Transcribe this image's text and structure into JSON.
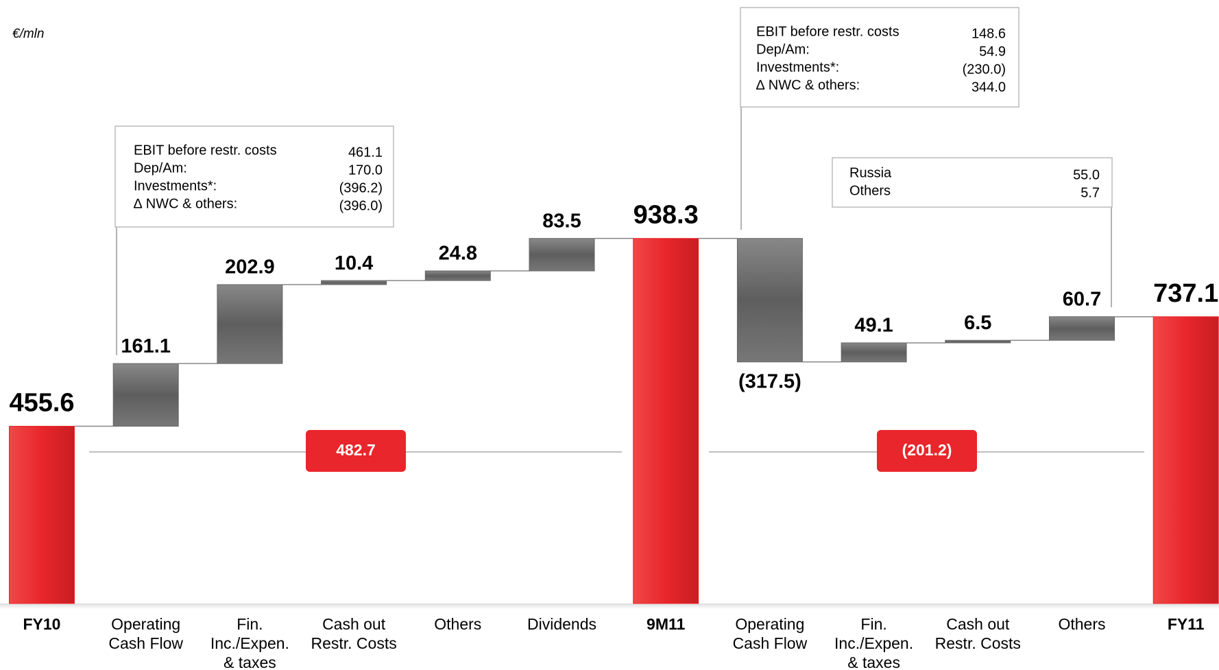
{
  "chart_data": {
    "type": "waterfall",
    "unit_label": "€/mln",
    "categories": [
      "FY10",
      "Operating\nCash Flow",
      "Fin.\nInc./Expen.\n& taxes",
      "Cash out\nRestr. Costs",
      "Others",
      "Dividends",
      "9M11",
      "Operating\nCash Flow",
      "Fin.\nInc./Expen.\n& taxes",
      "Cash out\nRestr. Costs",
      "Others",
      "FY11"
    ],
    "values": [
      455.6,
      161.1,
      202.9,
      10.4,
      24.8,
      83.5,
      938.3,
      -317.5,
      49.1,
      6.5,
      60.7,
      737.1
    ],
    "value_labels": [
      "455.6",
      "161.1",
      "202.9",
      "10.4",
      "24.8",
      "83.5",
      "938.3",
      "(317.5)",
      "49.1",
      "6.5",
      "60.7",
      "737.1"
    ],
    "totals": [
      true,
      false,
      false,
      false,
      false,
      false,
      true,
      false,
      false,
      false,
      false,
      true
    ],
    "total_color": "#e8262b",
    "change_color": "#666666",
    "ylim": [
      0,
      1500
    ],
    "period_sums": [
      "482.7",
      "(201.2)"
    ],
    "notes": [
      {
        "rows": [
          [
            "EBIT before restr. costs",
            "461.1"
          ],
          [
            "Dep/Am:",
            "170.0"
          ],
          [
            "Investments*:",
            "(396.2)"
          ],
          [
            "∆ NWC & others:",
            "(396.0)"
          ]
        ]
      },
      {
        "rows": [
          [
            "EBIT before restr. costs",
            "148.6"
          ],
          [
            "Dep/Am:",
            "54.9"
          ],
          [
            "Investments*:",
            "(230.0)"
          ],
          [
            "∆ NWC & others:",
            "344.0"
          ]
        ]
      },
      {
        "rows": [
          [
            "Russia",
            "55.0"
          ],
          [
            "Others",
            "5.7"
          ]
        ]
      }
    ]
  }
}
